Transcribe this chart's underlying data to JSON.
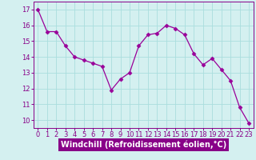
{
  "x": [
    0,
    1,
    2,
    3,
    4,
    5,
    6,
    7,
    8,
    9,
    10,
    11,
    12,
    13,
    14,
    15,
    16,
    17,
    18,
    19,
    20,
    21,
    22,
    23
  ],
  "y": [
    17.0,
    15.6,
    15.6,
    14.7,
    14.0,
    13.8,
    13.6,
    13.4,
    11.9,
    12.6,
    13.0,
    14.7,
    15.4,
    15.5,
    16.0,
    15.8,
    15.4,
    14.2,
    13.5,
    13.9,
    13.2,
    12.5,
    10.8,
    9.8
  ],
  "line_color": "#990099",
  "marker": "D",
  "marker_size": 2.5,
  "bg_color": "#d4f0f0",
  "grid_color": "#aadddd",
  "axis_label_color": "#ffffff",
  "tick_color": "#880088",
  "xlabel": "Windchill (Refroidissement éolien,°C)",
  "xlabel_bg": "#880088",
  "ylabel": "",
  "ylim": [
    9.5,
    17.5
  ],
  "xlim": [
    -0.5,
    23.5
  ],
  "yticks": [
    10,
    11,
    12,
    13,
    14,
    15,
    16,
    17
  ],
  "xticks": [
    0,
    1,
    2,
    3,
    4,
    5,
    6,
    7,
    8,
    9,
    10,
    11,
    12,
    13,
    14,
    15,
    16,
    17,
    18,
    19,
    20,
    21,
    22,
    23
  ],
  "title": "",
  "label_fontsize": 7,
  "tick_fontsize": 6
}
